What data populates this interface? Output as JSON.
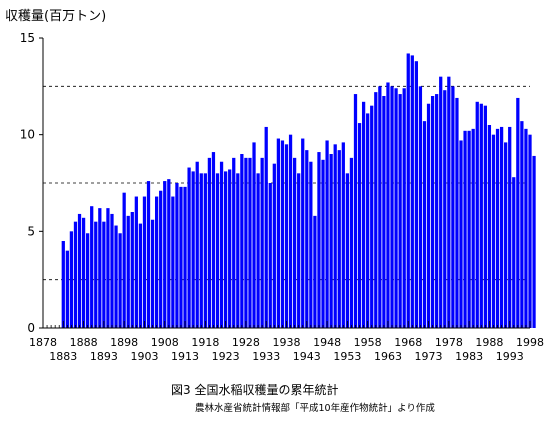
{
  "chart_data": {
    "type": "bar",
    "ylabel": "収穫量(百万トン)",
    "title": "図3 全国水稲収穫量の累年統計",
    "source": "農林水産省統計情報部「平成10年産作物統計」より作成",
    "ylim": [
      0,
      15
    ],
    "yticks": [
      0,
      5,
      10,
      15
    ],
    "gridlines": [
      2.5,
      7.5,
      12.5
    ],
    "xlim": [
      1878,
      1998
    ],
    "xticks_top": [
      "1878",
      "1888",
      "1898",
      "1908",
      "1918",
      "1928",
      "1938",
      "1948",
      "1958",
      "1968",
      "1978",
      "1988",
      "1998"
    ],
    "xticks_bottom": [
      "1883",
      "1893",
      "1903",
      "1913",
      "1923",
      "1933",
      "1943",
      "1953",
      "1963",
      "1973",
      "1983",
      "1993"
    ],
    "x_start": 1883,
    "values": [
      4.5,
      4.0,
      5.0,
      5.5,
      5.9,
      5.7,
      4.9,
      6.3,
      5.5,
      6.2,
      5.5,
      6.2,
      5.9,
      5.3,
      4.9,
      7.0,
      5.8,
      6.0,
      6.8,
      5.4,
      6.8,
      7.6,
      5.6,
      6.8,
      7.1,
      7.6,
      7.7,
      6.8,
      7.5,
      7.3,
      7.3,
      8.3,
      8.1,
      8.6,
      8.0,
      8.0,
      8.8,
      9.1,
      8.0,
      8.6,
      8.1,
      8.2,
      8.8,
      8.0,
      9.0,
      8.8,
      8.8,
      9.6,
      8.0,
      8.8,
      10.4,
      7.5,
      8.5,
      9.8,
      9.7,
      9.5,
      10.0,
      8.8,
      8.0,
      9.8,
      9.2,
      8.6,
      5.8,
      9.1,
      8.7,
      9.7,
      9.0,
      9.5,
      9.2,
      9.6,
      8.0,
      8.8,
      12.1,
      10.6,
      11.7,
      11.1,
      11.5,
      12.2,
      12.5,
      12.0,
      12.7,
      12.5,
      12.4,
      12.1,
      12.4,
      14.2,
      14.1,
      13.8,
      12.5,
      10.7,
      11.6,
      12.0,
      12.1,
      13.0,
      12.3,
      13.0,
      12.5,
      11.9,
      9.7,
      10.2,
      10.2,
      10.3,
      11.7,
      11.6,
      11.5,
      10.5,
      10.0,
      10.3,
      10.4,
      9.6,
      10.4,
      7.8,
      11.9,
      10.7,
      10.3,
      10.0,
      8.9
    ],
    "color": "#0000FF"
  }
}
